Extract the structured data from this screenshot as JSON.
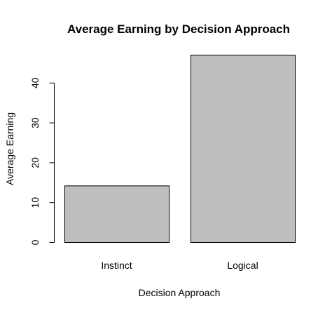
{
  "chart_data": {
    "type": "bar",
    "title": "Average Earning by Decision Approach",
    "xlabel": "Decision Approach",
    "ylabel": "Average Earning",
    "categories": [
      "Instinct",
      "Logical"
    ],
    "values": [
      14.2,
      47.0
    ],
    "ylim": [
      0,
      47
    ],
    "yticks": [
      0,
      10,
      20,
      30,
      40
    ],
    "bar_color": "#bebebe",
    "grid": false,
    "legend": "none"
  }
}
